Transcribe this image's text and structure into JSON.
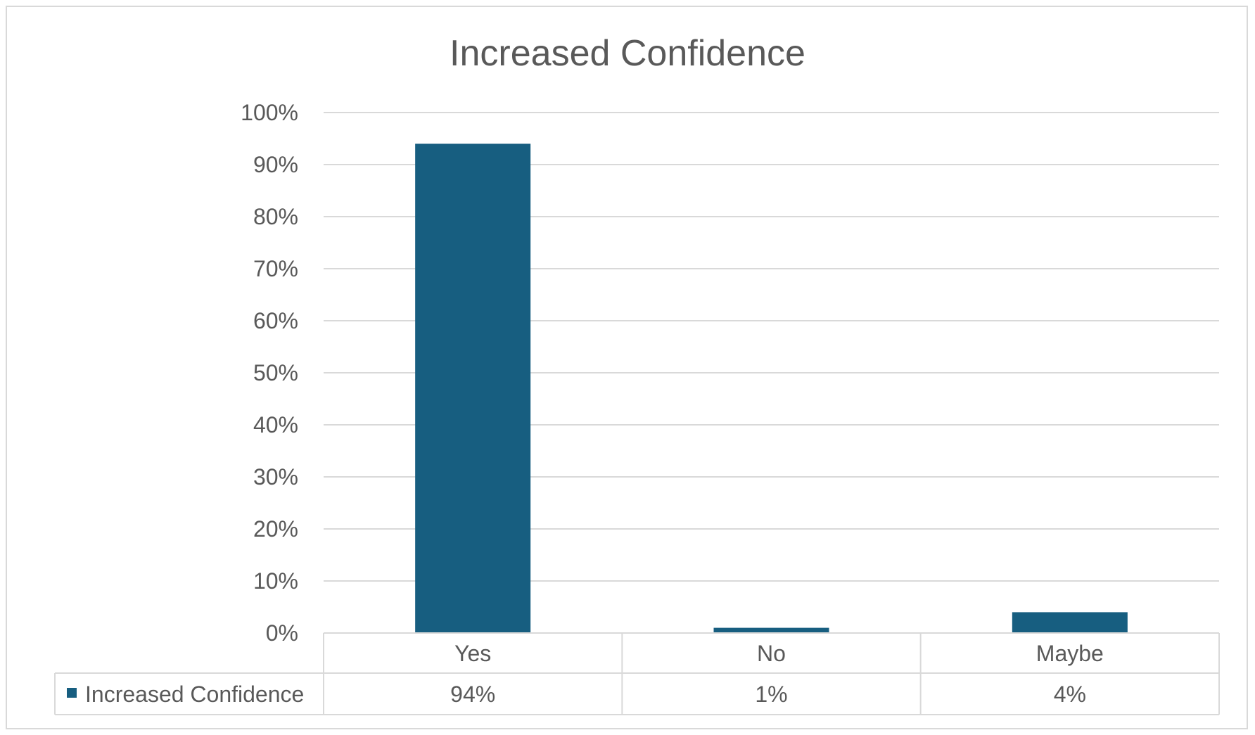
{
  "chart_data": {
    "type": "bar",
    "title": "Increased Confidence",
    "categories": [
      "Yes",
      "No",
      "Maybe"
    ],
    "series": [
      {
        "name": "Increased Confidence",
        "values": [
          0.94,
          0.01,
          0.04
        ],
        "labels": [
          "94%",
          "1%",
          "4%"
        ]
      }
    ],
    "ylim": [
      0,
      1
    ],
    "yticks": [
      0,
      0.1,
      0.2,
      0.3,
      0.4,
      0.5,
      0.6,
      0.7,
      0.8,
      0.9,
      1.0
    ],
    "ytick_labels": [
      "0%",
      "10%",
      "20%",
      "30%",
      "40%",
      "50%",
      "60%",
      "70%",
      "80%",
      "90%",
      "100%"
    ],
    "grid": true,
    "data_table": true,
    "legend": "data-table-left",
    "colors": {
      "bar": "#175e80",
      "grid": "#d9d9d9",
      "text": "#595959"
    }
  }
}
